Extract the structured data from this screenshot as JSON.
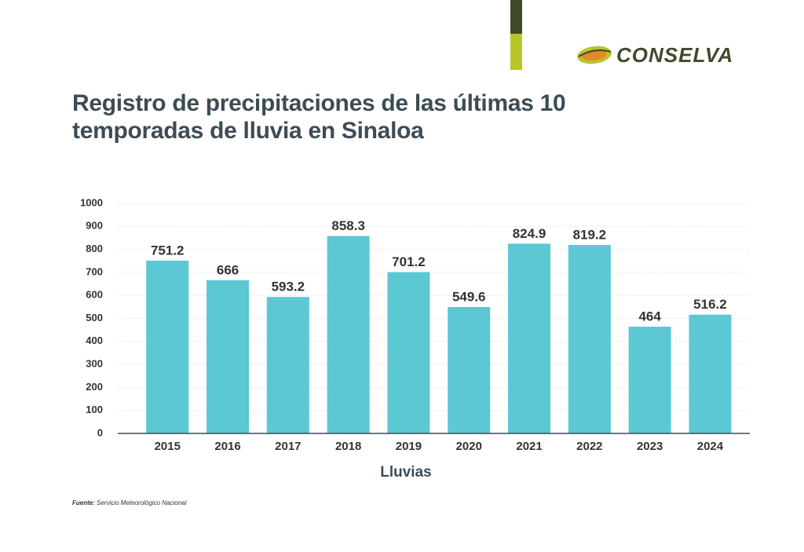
{
  "brand": "CONSELVA",
  "source": {
    "label": "Fuente:",
    "text": "Servicio Meteorológico Nacional"
  },
  "chart_data": {
    "type": "bar",
    "title": "Registro de precipitaciones de las últimas 10 temporadas de lluvia en Sinaloa",
    "x_label": "Lluvias",
    "categories": [
      "2015",
      "2016",
      "2017",
      "2018",
      "2019",
      "2020",
      "2021",
      "2022",
      "2023",
      "2024"
    ],
    "values": [
      751.2,
      666,
      593.2,
      858.3,
      701.2,
      549.6,
      824.9,
      819.2,
      464,
      516.2
    ],
    "color": "#5bc8d4",
    "ylim": [
      0,
      1000
    ],
    "yticks": [
      0,
      100,
      200,
      300,
      400,
      500,
      600,
      700,
      800,
      900,
      1000
    ],
    "grid": true
  }
}
